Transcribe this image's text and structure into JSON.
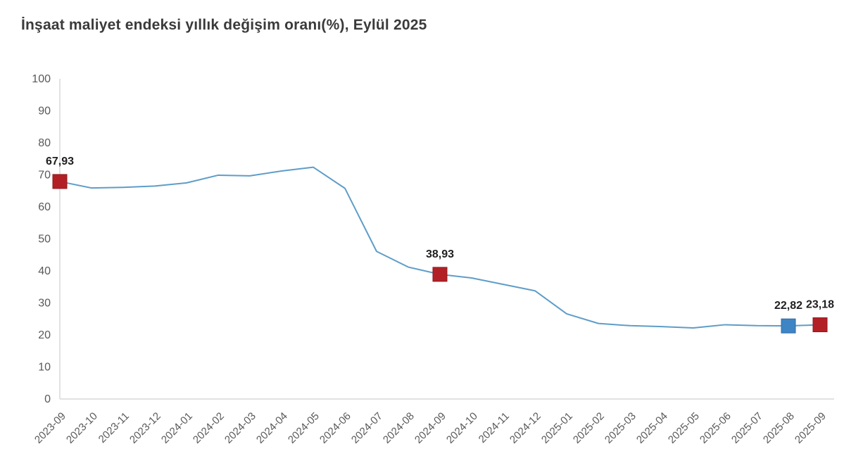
{
  "chart_data": {
    "type": "line",
    "title": "İnşaat maliyet endeksi yıllık değişim oranı(%), Eylül 2025",
    "categories": [
      "2023-09",
      "2023-10",
      "2023-11",
      "2023-12",
      "2024-01",
      "2024-02",
      "2024-03",
      "2024-04",
      "2024-05",
      "2024-06",
      "2024-07",
      "2024-08",
      "2024-09",
      "2024-10",
      "2024-11",
      "2024-12",
      "2025-01",
      "2025-02",
      "2025-03",
      "2025-04",
      "2025-05",
      "2025-06",
      "2025-07",
      "2025-08",
      "2025-09"
    ],
    "values": [
      67.93,
      65.9,
      66.1,
      66.5,
      67.5,
      69.9,
      69.7,
      71.2,
      72.4,
      65.8,
      46.1,
      41.2,
      38.93,
      37.8,
      35.8,
      33.8,
      26.6,
      23.6,
      22.9,
      22.6,
      22.2,
      23.2,
      22.9,
      22.82,
      23.18
    ],
    "ylim": [
      0,
      100
    ],
    "ytick_step": 10,
    "grid": "off",
    "legend": "none",
    "xlabel": "",
    "ylabel": "",
    "line_color": "#5e9dc8",
    "axis_color": "#d9d9d9",
    "tick_color": "#595959",
    "annotations": [
      {
        "index": 0,
        "label": "67,93",
        "marker_color": "#b22026",
        "marker_border": "#8e1a1f"
      },
      {
        "index": 12,
        "label": "38,93",
        "marker_color": "#b22026",
        "marker_border": "#8e1a1f"
      },
      {
        "index": 23,
        "label": "22,82",
        "marker_color": "#3d85c4",
        "marker_border": "#2f6ba0"
      },
      {
        "index": 24,
        "label": "23,18",
        "marker_color": "#b22026",
        "marker_border": "#8e1a1f"
      }
    ]
  }
}
